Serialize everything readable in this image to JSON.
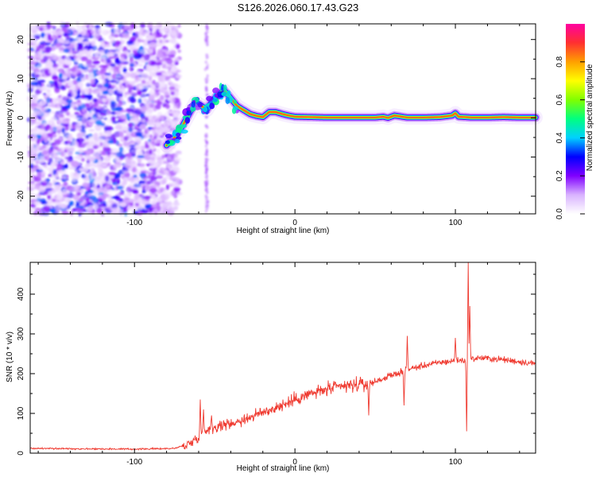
{
  "title": "S126.2026.060.17.43.G23",
  "chart_data": [
    {
      "type": "heatmap",
      "name": "spectrogram",
      "xlabel": "Height of straight line (km)",
      "ylabel": "Frequency (Hz)",
      "xlim": [
        -165,
        150
      ],
      "ylim": [
        -24.5,
        24
      ],
      "xticks": [
        -100,
        0,
        100
      ],
      "yticks": [
        -20,
        -10,
        0,
        10,
        20
      ],
      "colorbar": {
        "label": "Normalized spectral amplitude",
        "range": [
          0,
          1
        ],
        "ticks": [
          0.0,
          0.2,
          0.4,
          0.6,
          0.8
        ],
        "colors": [
          "#ffffff",
          "#d9b3ff",
          "#8000ff",
          "#0000ff",
          "#00d0ff",
          "#00ff80",
          "#80ff00",
          "#ffff00",
          "#ffa000",
          "#ff3030",
          "#ff00a0"
        ]
      },
      "ridge": {
        "x": [
          -80,
          -75,
          -70,
          -66,
          -62,
          -58,
          -55,
          -52,
          -48,
          -44,
          -40,
          -36,
          -32,
          -28,
          -24,
          -20,
          -16,
          -12,
          -8,
          -4,
          0,
          10,
          20,
          30,
          40,
          50,
          55,
          58,
          62,
          70,
          80,
          90,
          98,
          100,
          102,
          110,
          120,
          130,
          140,
          150
        ],
        "y": [
          -7,
          -5,
          -2,
          1,
          4,
          3,
          2,
          4,
          6,
          7,
          5,
          3,
          2,
          1,
          0.5,
          0.2,
          1.5,
          1.5,
          1,
          0.6,
          0.3,
          0.2,
          0.1,
          0.1,
          0.1,
          0.1,
          0.3,
          0,
          0.6,
          0.1,
          0.1,
          0.2,
          0.6,
          1.2,
          0.3,
          0.1,
          0.1,
          0.2,
          0.1,
          0.1
        ]
      }
    },
    {
      "type": "line",
      "name": "snr",
      "xlabel": "Height of straight line (km)",
      "ylabel": "SNR (10 * v/v)",
      "xlim": [
        -165,
        150
      ],
      "ylim": [
        0,
        480
      ],
      "xticks": [
        -100,
        0,
        100
      ],
      "yticks": [
        0,
        100,
        200,
        300,
        400
      ],
      "color": "#ef3a30",
      "baseline": {
        "x": [
          -165,
          -100,
          -75,
          -65,
          -55,
          -45,
          -35,
          -25,
          -15,
          -5,
          0,
          10,
          20,
          30,
          40,
          46,
          50,
          60,
          70,
          80,
          90,
          100,
          108,
          115,
          130,
          150
        ],
        "y": [
          12,
          10,
          12,
          25,
          60,
          70,
          80,
          95,
          110,
          125,
          135,
          150,
          160,
          168,
          172,
          175,
          180,
          195,
          210,
          220,
          228,
          232,
          235,
          240,
          235,
          225
        ]
      },
      "spikes": [
        {
          "x": -59,
          "y": 135
        },
        {
          "x": -57,
          "y": 110
        },
        {
          "x": -52,
          "y": 95
        },
        {
          "x": 46,
          "y": 95
        },
        {
          "x": 68,
          "y": 120
        },
        {
          "x": 70,
          "y": 295
        },
        {
          "x": 100,
          "y": 290
        },
        {
          "x": 107,
          "y": 55
        },
        {
          "x": 108,
          "y": 480
        },
        {
          "x": 109,
          "y": 370
        }
      ]
    }
  ]
}
